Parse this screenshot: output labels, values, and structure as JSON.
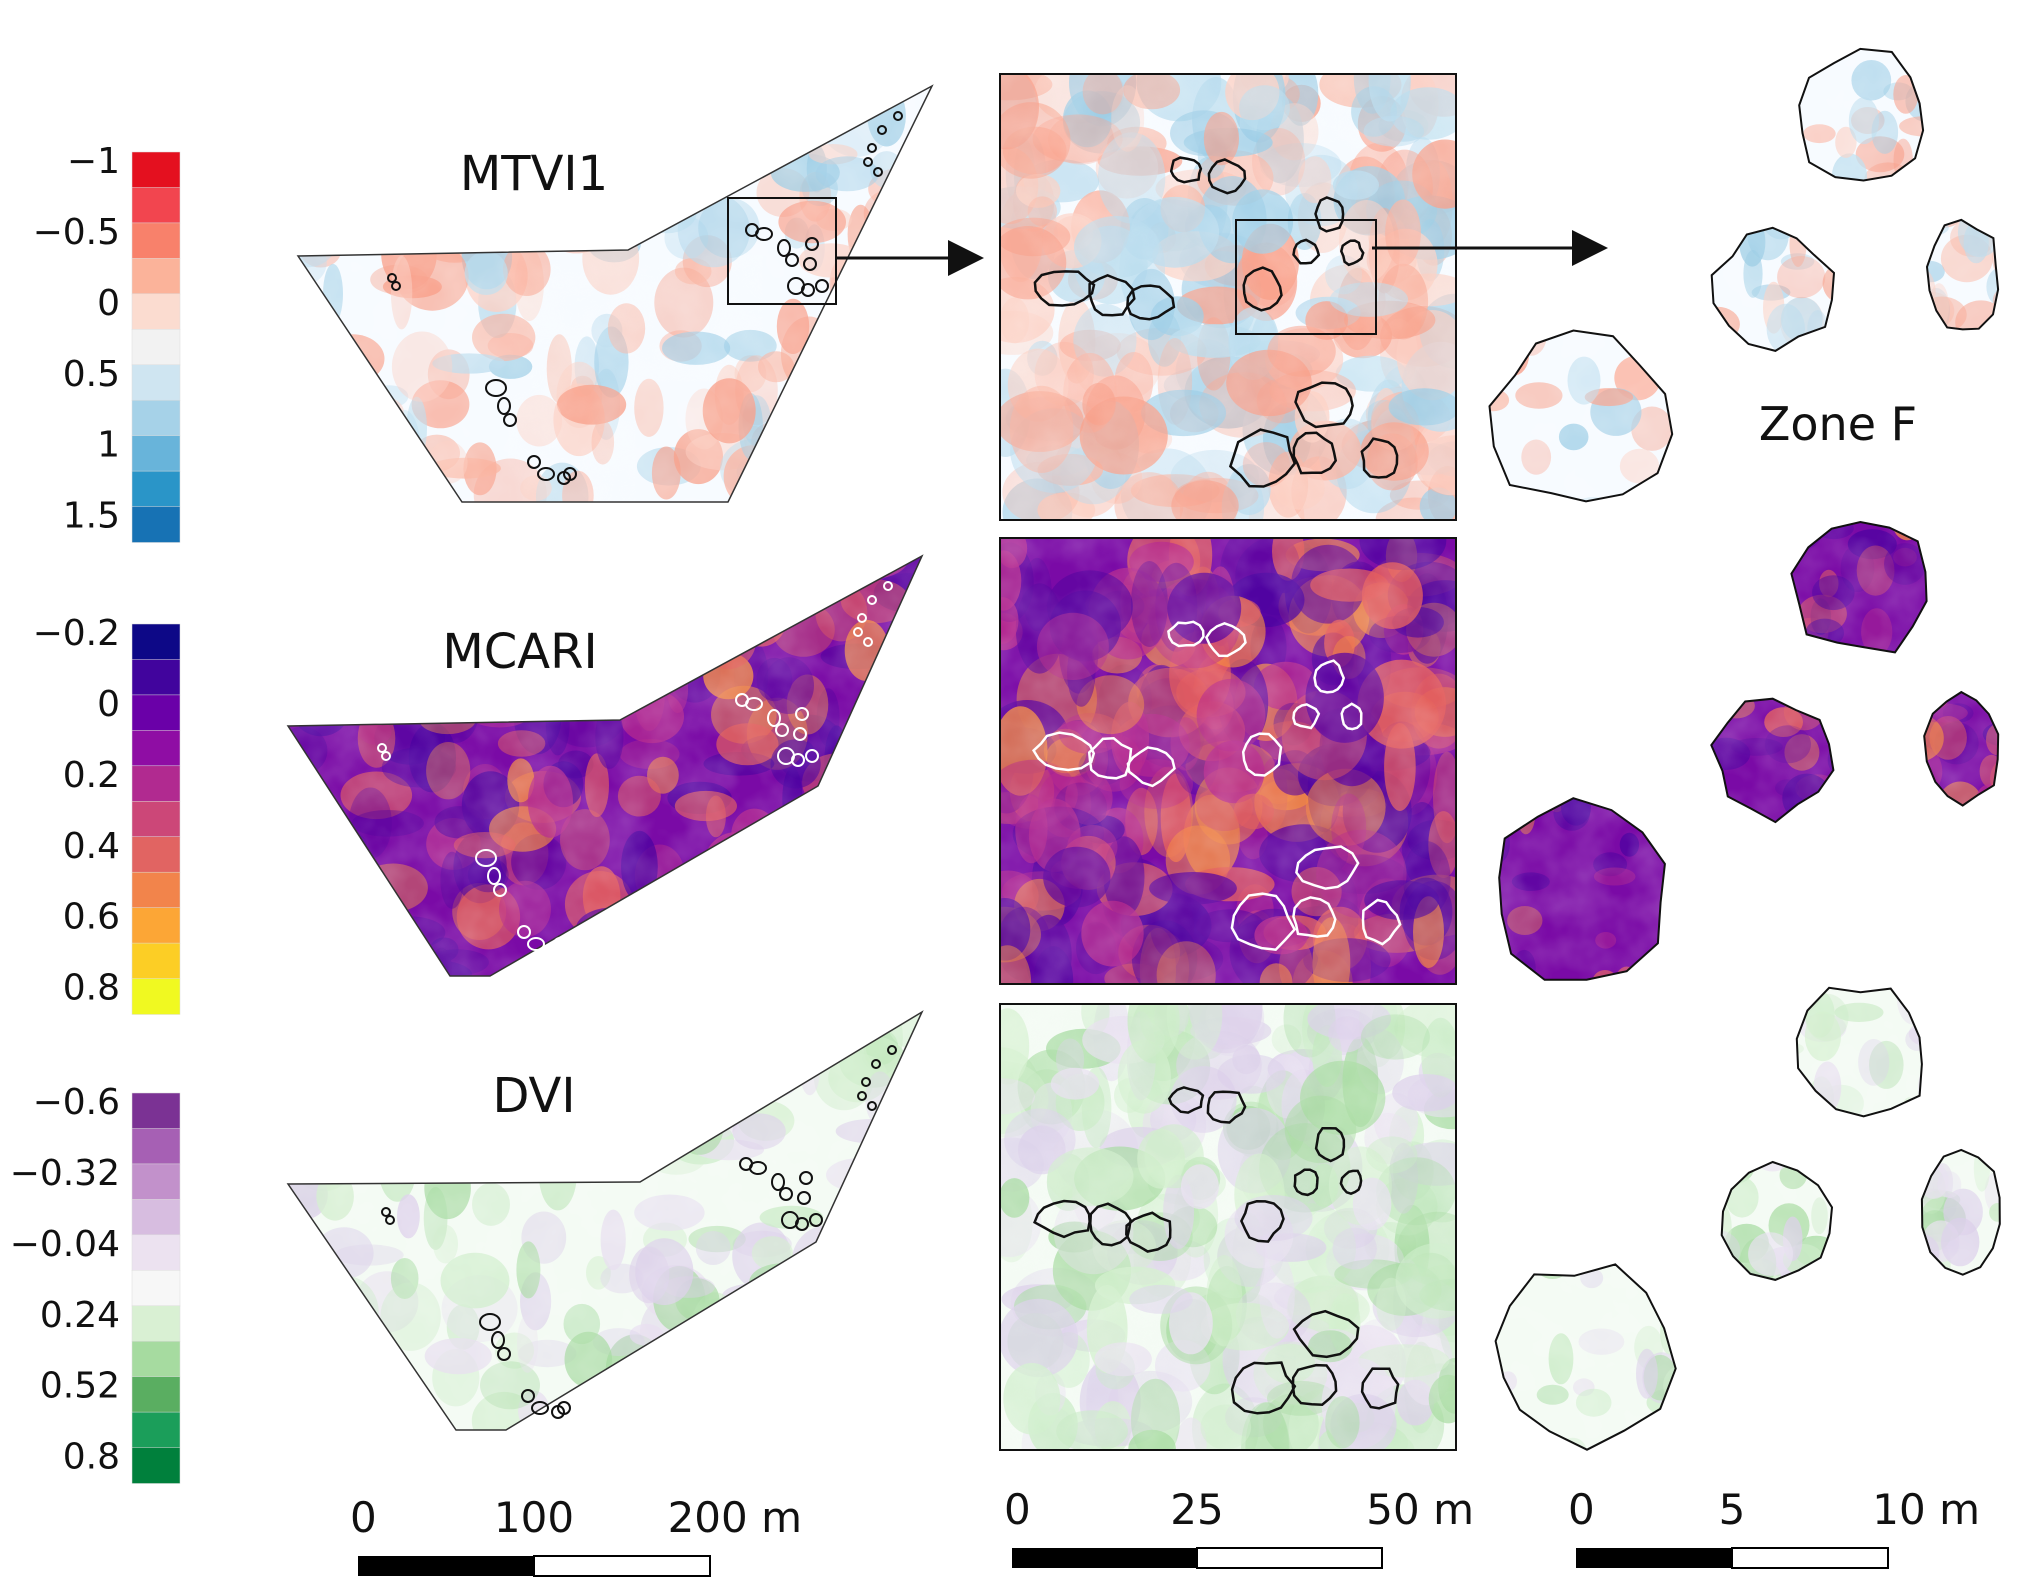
{
  "panels": [
    {
      "index_name": "MTVI1",
      "legend_ticks": [
        "−1",
        "−0.5",
        "0",
        "0.5",
        "1",
        "1.5"
      ],
      "ramp": [
        "#e4101f",
        "#f2454f",
        "#f8816b",
        "#fbb39a",
        "#fbdcd0",
        "#f2f2f2",
        "#cfe5f1",
        "#a6d2e8",
        "#68b4da",
        "#2a95c8",
        "#1772b4"
      ],
      "field_base": "#f7fbff",
      "field_colors": [
        "#fbb3a0",
        "#b9dcee",
        "#fcd0c3",
        "#9ccde6",
        "#f9a08a"
      ],
      "outline_color": "#111111"
    },
    {
      "index_name": "MCARI",
      "legend_ticks": [
        "−0.2",
        "0",
        "0.2",
        "0.4",
        "0.6",
        "0.8"
      ],
      "ramp": [
        "#0d0887",
        "#41049d",
        "#6a00a8",
        "#8f0da4",
        "#b12a90",
        "#cc4778",
        "#e16462",
        "#f2844b",
        "#fca636",
        "#fcce25",
        "#f0f921"
      ],
      "field_base": "#7a0aa6",
      "field_colors": [
        "#5a04a0",
        "#b72b8f",
        "#e45f5f",
        "#f48a44",
        "#4b03a1"
      ],
      "outline_color": "#ffffff"
    },
    {
      "index_name": "DVI",
      "legend_ticks": [
        "−0.6",
        "−0.32",
        "−0.04",
        "0.24",
        "0.52",
        "0.8"
      ],
      "ramp": [
        "#7b3294",
        "#a660b4",
        "#c291cb",
        "#d7bde0",
        "#ece2f0",
        "#f7f7f7",
        "#d9f0d3",
        "#a6dba0",
        "#5aae61",
        "#1b9e5a",
        "#00803c"
      ],
      "field_base": "#f4fbf4",
      "field_colors": [
        "#dcd0ea",
        "#c8ebc4",
        "#e8e0f0",
        "#a6dba0",
        "#d2efcd"
      ],
      "outline_color": "#111111"
    }
  ],
  "zone_label": "Zone F",
  "scalebars": [
    {
      "labels": [
        "0",
        "100",
        "200 m"
      ]
    },
    {
      "labels": [
        "0",
        "25",
        "50 m"
      ]
    },
    {
      "labels": [
        "0",
        "5",
        "10 m"
      ]
    }
  ]
}
